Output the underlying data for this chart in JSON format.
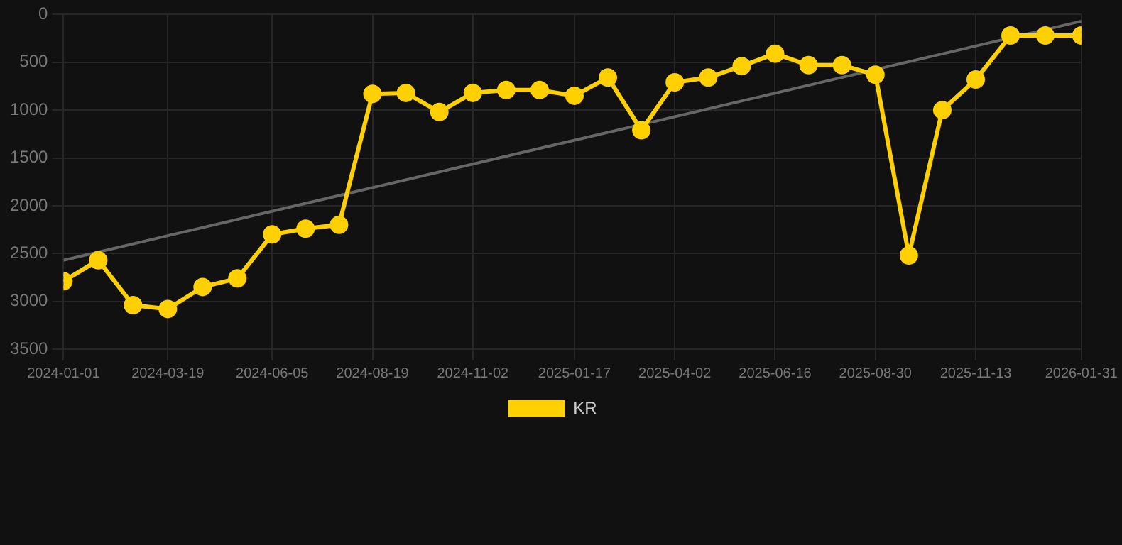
{
  "chart_data": {
    "type": "line",
    "x": [
      "2024-01-01",
      "2024-01-27",
      "2024-02-22",
      "2024-03-19",
      "2024-04-14",
      "2024-05-10",
      "2024-06-05",
      "2024-06-30",
      "2024-07-25",
      "2024-08-19",
      "2024-09-13",
      "2024-10-08",
      "2024-11-02",
      "2024-11-27",
      "2024-12-22",
      "2025-01-17",
      "2025-02-11",
      "2025-03-08",
      "2025-04-02",
      "2025-04-27",
      "2025-05-22",
      "2025-06-16",
      "2025-07-11",
      "2025-08-05",
      "2025-08-30",
      "2025-09-24",
      "2025-10-19",
      "2025-11-13",
      "2025-12-09",
      "2026-01-04",
      "2026-01-31"
    ],
    "series": [
      {
        "name": "KR",
        "color": "#ffd000",
        "marker": "circle",
        "values": [
          2790,
          2570,
          3040,
          3080,
          2850,
          2760,
          2300,
          2240,
          2200,
          830,
          820,
          1020,
          820,
          790,
          790,
          850,
          660,
          1210,
          710,
          660,
          540,
          410,
          530,
          530,
          630,
          2520,
          1000,
          680,
          220,
          220,
          220
        ]
      },
      {
        "type": "line",
        "color": "#666666",
        "marker": "none",
        "x": [
          "2024-01-01",
          "2026-01-31"
        ],
        "values": [
          2570,
          70
        ]
      }
    ],
    "xlim": [
      "2024-01-01",
      "2026-01-31"
    ],
    "xticks": [
      "2024-01-01",
      "2024-03-19",
      "2024-06-05",
      "2024-08-19",
      "2024-11-02",
      "2025-01-17",
      "2025-04-02",
      "2025-06-16",
      "2025-08-30",
      "2025-11-13",
      "2026-01-31"
    ],
    "ylim": [
      3500,
      0
    ],
    "yticks": [
      0,
      500,
      1000,
      1500,
      2000,
      2500,
      3000,
      3500
    ],
    "grid": true,
    "legend": "bottom"
  }
}
